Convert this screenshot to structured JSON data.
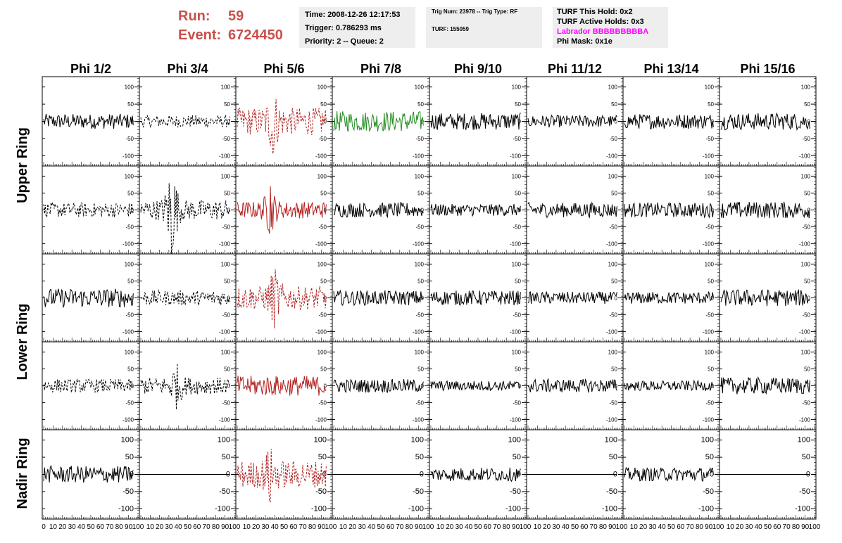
{
  "header": {
    "run_label": "Run:",
    "run_value": "59",
    "event_label": "Event:",
    "event_value": "6724450",
    "time": "Time: 2008-12-26 12:17:53",
    "trigger": "Trigger: 0.786293 ms",
    "priority": "Priority: 2 -- Queue: 2",
    "trig_num": "Trig Num: 23978 -- Trig Type: RF",
    "turf": "TURF: 155059",
    "turf_this_hold": "TURF This Hold: 0x2",
    "turf_active_holds": "TURF Active Holds: 0x3",
    "labrador": "Labrador BBBBBBBBBA",
    "phi_mask": "Phi Mask: 0x1e"
  },
  "chart_data": {
    "type": "line",
    "columns": [
      "Phi 1/2",
      "Phi 3/4",
      "Phi 5/6",
      "Phi 7/8",
      "Phi 9/10",
      "Phi 11/12",
      "Phi 13/14",
      "Phi 15/16"
    ],
    "rows": [
      "Upper Ring",
      "Upper Ring",
      "Lower Ring",
      "Lower Ring",
      "Nadir Ring"
    ],
    "row_labels": [
      "Upper Ring",
      "Lower Ring",
      "Nadir Ring"
    ],
    "xlim": [
      0,
      100
    ],
    "ylim": [
      -130,
      130
    ],
    "x_ticks": [
      0,
      10,
      20,
      30,
      40,
      50,
      60,
      70,
      80,
      90,
      100
    ],
    "y_ticks": [
      -100,
      -50,
      0,
      50,
      100
    ],
    "series_x_range": [
      0,
      95
    ],
    "colors": {
      "black": "#000000",
      "red": "#b22222",
      "green": "#228b22"
    },
    "panels": [
      [
        {
          "amp": 22,
          "color": "black",
          "style": "solid"
        },
        {
          "amp": 18,
          "color": "black",
          "style": "dashed"
        },
        {
          "amp": 40,
          "color": "red",
          "style": "dashed",
          "peak": 38,
          "peak_amp": 95
        },
        {
          "amp": 30,
          "color": "green",
          "style": "solid"
        },
        {
          "amp": 25,
          "color": "black",
          "style": "solid"
        },
        {
          "amp": 18,
          "color": "black",
          "style": "solid"
        },
        {
          "amp": 22,
          "color": "black",
          "style": "solid"
        },
        {
          "amp": 25,
          "color": "black",
          "style": "solid"
        }
      ],
      [
        {
          "amp": 22,
          "color": "black",
          "style": "dashed"
        },
        {
          "amp": 30,
          "color": "black",
          "style": "dashed",
          "peak": 33,
          "peak_amp": 130
        },
        {
          "amp": 25,
          "color": "red",
          "style": "solid",
          "peak": 35,
          "peak_amp": 70
        },
        {
          "amp": 22,
          "color": "black",
          "style": "solid"
        },
        {
          "amp": 18,
          "color": "black",
          "style": "solid"
        },
        {
          "amp": 22,
          "color": "black",
          "style": "solid"
        },
        {
          "amp": 22,
          "color": "black",
          "style": "solid"
        },
        {
          "amp": 25,
          "color": "black",
          "style": "solid"
        }
      ],
      [
        {
          "amp": 28,
          "color": "black",
          "style": "solid"
        },
        {
          "amp": 22,
          "color": "black",
          "style": "dashed"
        },
        {
          "amp": 35,
          "color": "red",
          "style": "dashed",
          "peak": 40,
          "peak_amp": 90
        },
        {
          "amp": 22,
          "color": "black",
          "style": "solid"
        },
        {
          "amp": 22,
          "color": "black",
          "style": "solid"
        },
        {
          "amp": 18,
          "color": "black",
          "style": "solid"
        },
        {
          "amp": 18,
          "color": "black",
          "style": "solid"
        },
        {
          "amp": 25,
          "color": "black",
          "style": "solid"
        }
      ],
      [
        {
          "amp": 20,
          "color": "black",
          "style": "dashed"
        },
        {
          "amp": 25,
          "color": "black",
          "style": "dashed",
          "peak": 38,
          "peak_amp": 70
        },
        {
          "amp": 30,
          "color": "red",
          "style": "solid"
        },
        {
          "amp": 20,
          "color": "black",
          "style": "solid"
        },
        {
          "amp": 15,
          "color": "black",
          "style": "solid"
        },
        {
          "amp": 20,
          "color": "black",
          "style": "solid"
        },
        {
          "amp": 15,
          "color": "black",
          "style": "solid"
        },
        {
          "amp": 25,
          "color": "black",
          "style": "solid"
        }
      ],
      [
        {
          "amp": 25,
          "color": "black",
          "style": "solid"
        },
        {
          "amp": 0,
          "color": "black",
          "style": "solid"
        },
        {
          "amp": 40,
          "color": "red",
          "style": "dashed",
          "peak": 35,
          "peak_amp": 80
        },
        {
          "amp": 0,
          "color": "black",
          "style": "solid"
        },
        {
          "amp": 20,
          "color": "black",
          "style": "solid"
        },
        {
          "amp": 0,
          "color": "black",
          "style": "solid"
        },
        {
          "amp": 20,
          "color": "black",
          "style": "solid"
        },
        {
          "amp": 0,
          "color": "black",
          "style": "solid"
        }
      ]
    ]
  }
}
